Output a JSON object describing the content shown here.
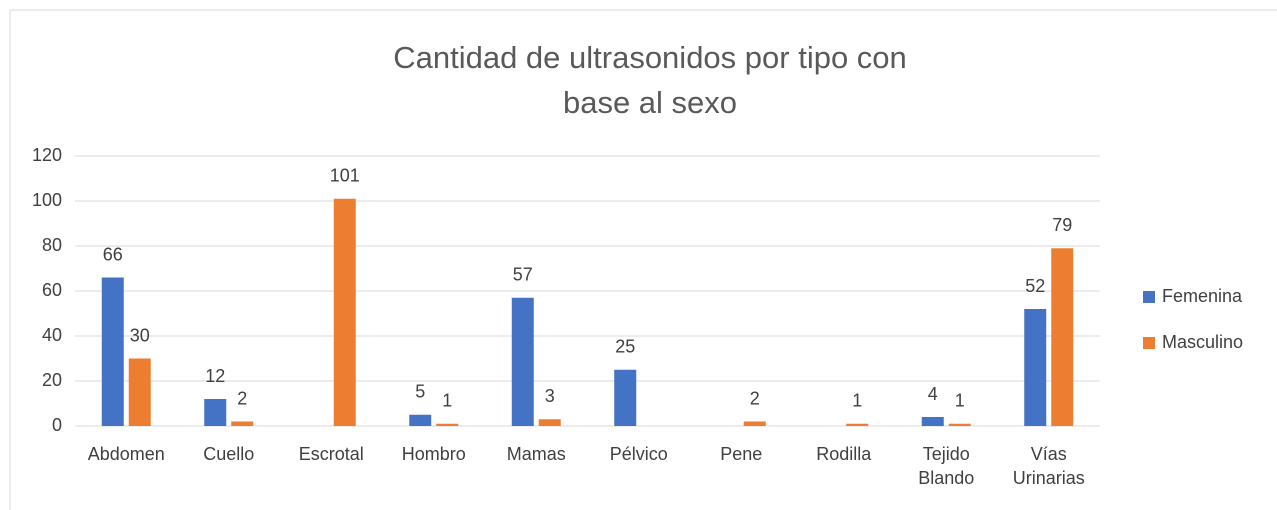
{
  "chart_data": {
    "type": "bar",
    "title": "Cantidad de ultrasonidos por tipo con base al sexo",
    "categories": [
      "Abdomen",
      "Cuello",
      "Escrotal",
      "Hombro",
      "Mamas",
      "Pélvico",
      "Pene",
      "Rodilla",
      "Tejido Blando",
      "Vías Urinarias"
    ],
    "series": [
      {
        "name": "Femenina",
        "color": "#4472c4",
        "values": [
          66,
          12,
          null,
          5,
          57,
          25,
          null,
          null,
          4,
          52
        ]
      },
      {
        "name": "Masculino",
        "color": "#ed7d31",
        "values": [
          30,
          2,
          101,
          1,
          3,
          null,
          2,
          1,
          1,
          79
        ]
      }
    ],
    "ylim": [
      0,
      120
    ],
    "yticks": [
      0,
      20,
      40,
      60,
      80,
      100,
      120
    ],
    "grid": true,
    "legend": "right"
  }
}
